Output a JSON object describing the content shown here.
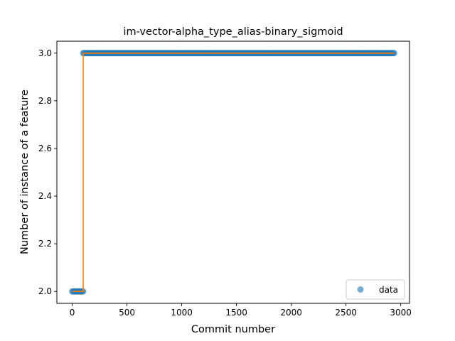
{
  "chart_data": {
    "type": "scatter",
    "title": "im-vector-alpha_type_alias-binary_sigmoid",
    "xlabel": "Commit number",
    "ylabel": "Number of instance of a feature",
    "xlim": [
      -140,
      3080
    ],
    "ylim": [
      1.95,
      3.05
    ],
    "xticks": [
      0,
      500,
      1000,
      1500,
      2000,
      2500,
      3000
    ],
    "yticks": [
      2.0,
      2.2,
      2.4,
      2.6,
      2.8,
      3.0
    ],
    "xtick_labels": [
      "0",
      "500",
      "1000",
      "1500",
      "2000",
      "2500",
      "3000"
    ],
    "ytick_labels": [
      "2.0",
      "2.2",
      "2.4",
      "2.6",
      "2.8",
      "3.0"
    ],
    "grid": false,
    "legend": {
      "position": "lower-right",
      "entries": [
        "data"
      ]
    },
    "series": [
      {
        "name": "data",
        "kind": "markers",
        "color": "#1f77b4",
        "segments": [
          {
            "x_start": 0,
            "x_end": 100,
            "y": 2.0
          },
          {
            "x_start": 100,
            "x_end": 2940,
            "y": 3.0
          }
        ]
      },
      {
        "kind": "step-line",
        "color": "#ff7f0e",
        "points": [
          [
            0,
            2.0
          ],
          [
            100,
            2.0
          ],
          [
            100,
            3.0
          ],
          [
            2940,
            3.0
          ]
        ]
      }
    ]
  }
}
